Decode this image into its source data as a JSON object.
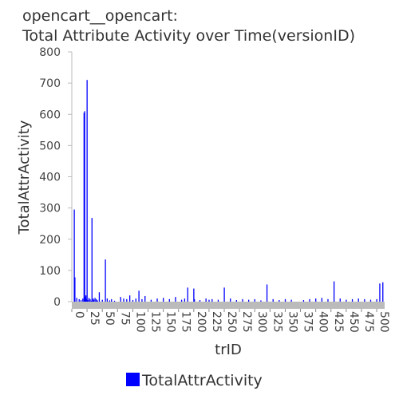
{
  "chart_data": {
    "type": "bar",
    "title_line1": "opencart__opencart:",
    "title_line2": "Total Attribute Activity over Time(versionID)",
    "xlabel": "trID",
    "ylabel": "TotalAttrActivity",
    "ylim": [
      0,
      800
    ],
    "yticks": [
      "0",
      "100",
      "200",
      "300",
      "400",
      "500",
      "600",
      "700",
      "800"
    ],
    "xticks": [
      "0",
      "25",
      "50",
      "75",
      "100",
      "125",
      "150",
      "175",
      "200",
      "225",
      "250",
      "275",
      "300",
      "325",
      "350",
      "375",
      "400",
      "425",
      "450",
      "475",
      "500"
    ],
    "xlim": [
      0,
      513
    ],
    "grid": false,
    "legend_position": "bottom",
    "colors": {
      "series": "#0000ff",
      "axis": "#bbbbbb"
    },
    "series": [
      {
        "name": "TotalAttrActivity",
        "x": [
          4,
          5,
          8,
          12,
          15,
          18,
          20,
          21,
          22,
          23,
          24,
          25,
          26,
          28,
          30,
          32,
          33,
          35,
          36,
          38,
          40,
          42,
          45,
          50,
          55,
          58,
          62,
          65,
          70,
          80,
          85,
          90,
          95,
          100,
          105,
          110,
          115,
          120,
          130,
          140,
          150,
          160,
          170,
          180,
          185,
          190,
          200,
          201,
          210,
          220,
          225,
          230,
          240,
          250,
          260,
          270,
          280,
          290,
          300,
          310,
          320,
          330,
          340,
          350,
          360,
          380,
          390,
          400,
          410,
          420,
          430,
          440,
          450,
          460,
          470,
          480,
          490,
          500,
          505,
          510
        ],
        "values": [
          295,
          78,
          12,
          8,
          5,
          10,
          605,
          610,
          15,
          20,
          8,
          710,
          5,
          12,
          8,
          3,
          268,
          10,
          6,
          12,
          8,
          4,
          30,
          6,
          135,
          10,
          4,
          8,
          3,
          15,
          10,
          8,
          20,
          5,
          10,
          35,
          8,
          18,
          6,
          10,
          12,
          8,
          15,
          6,
          10,
          45,
          42,
          8,
          5,
          10,
          6,
          8,
          6,
          45,
          10,
          5,
          8,
          6,
          8,
          4,
          55,
          8,
          5,
          8,
          6,
          5,
          8,
          10,
          12,
          8,
          65,
          10,
          6,
          8,
          10,
          8,
          6,
          8,
          58,
          62
        ]
      }
    ]
  }
}
